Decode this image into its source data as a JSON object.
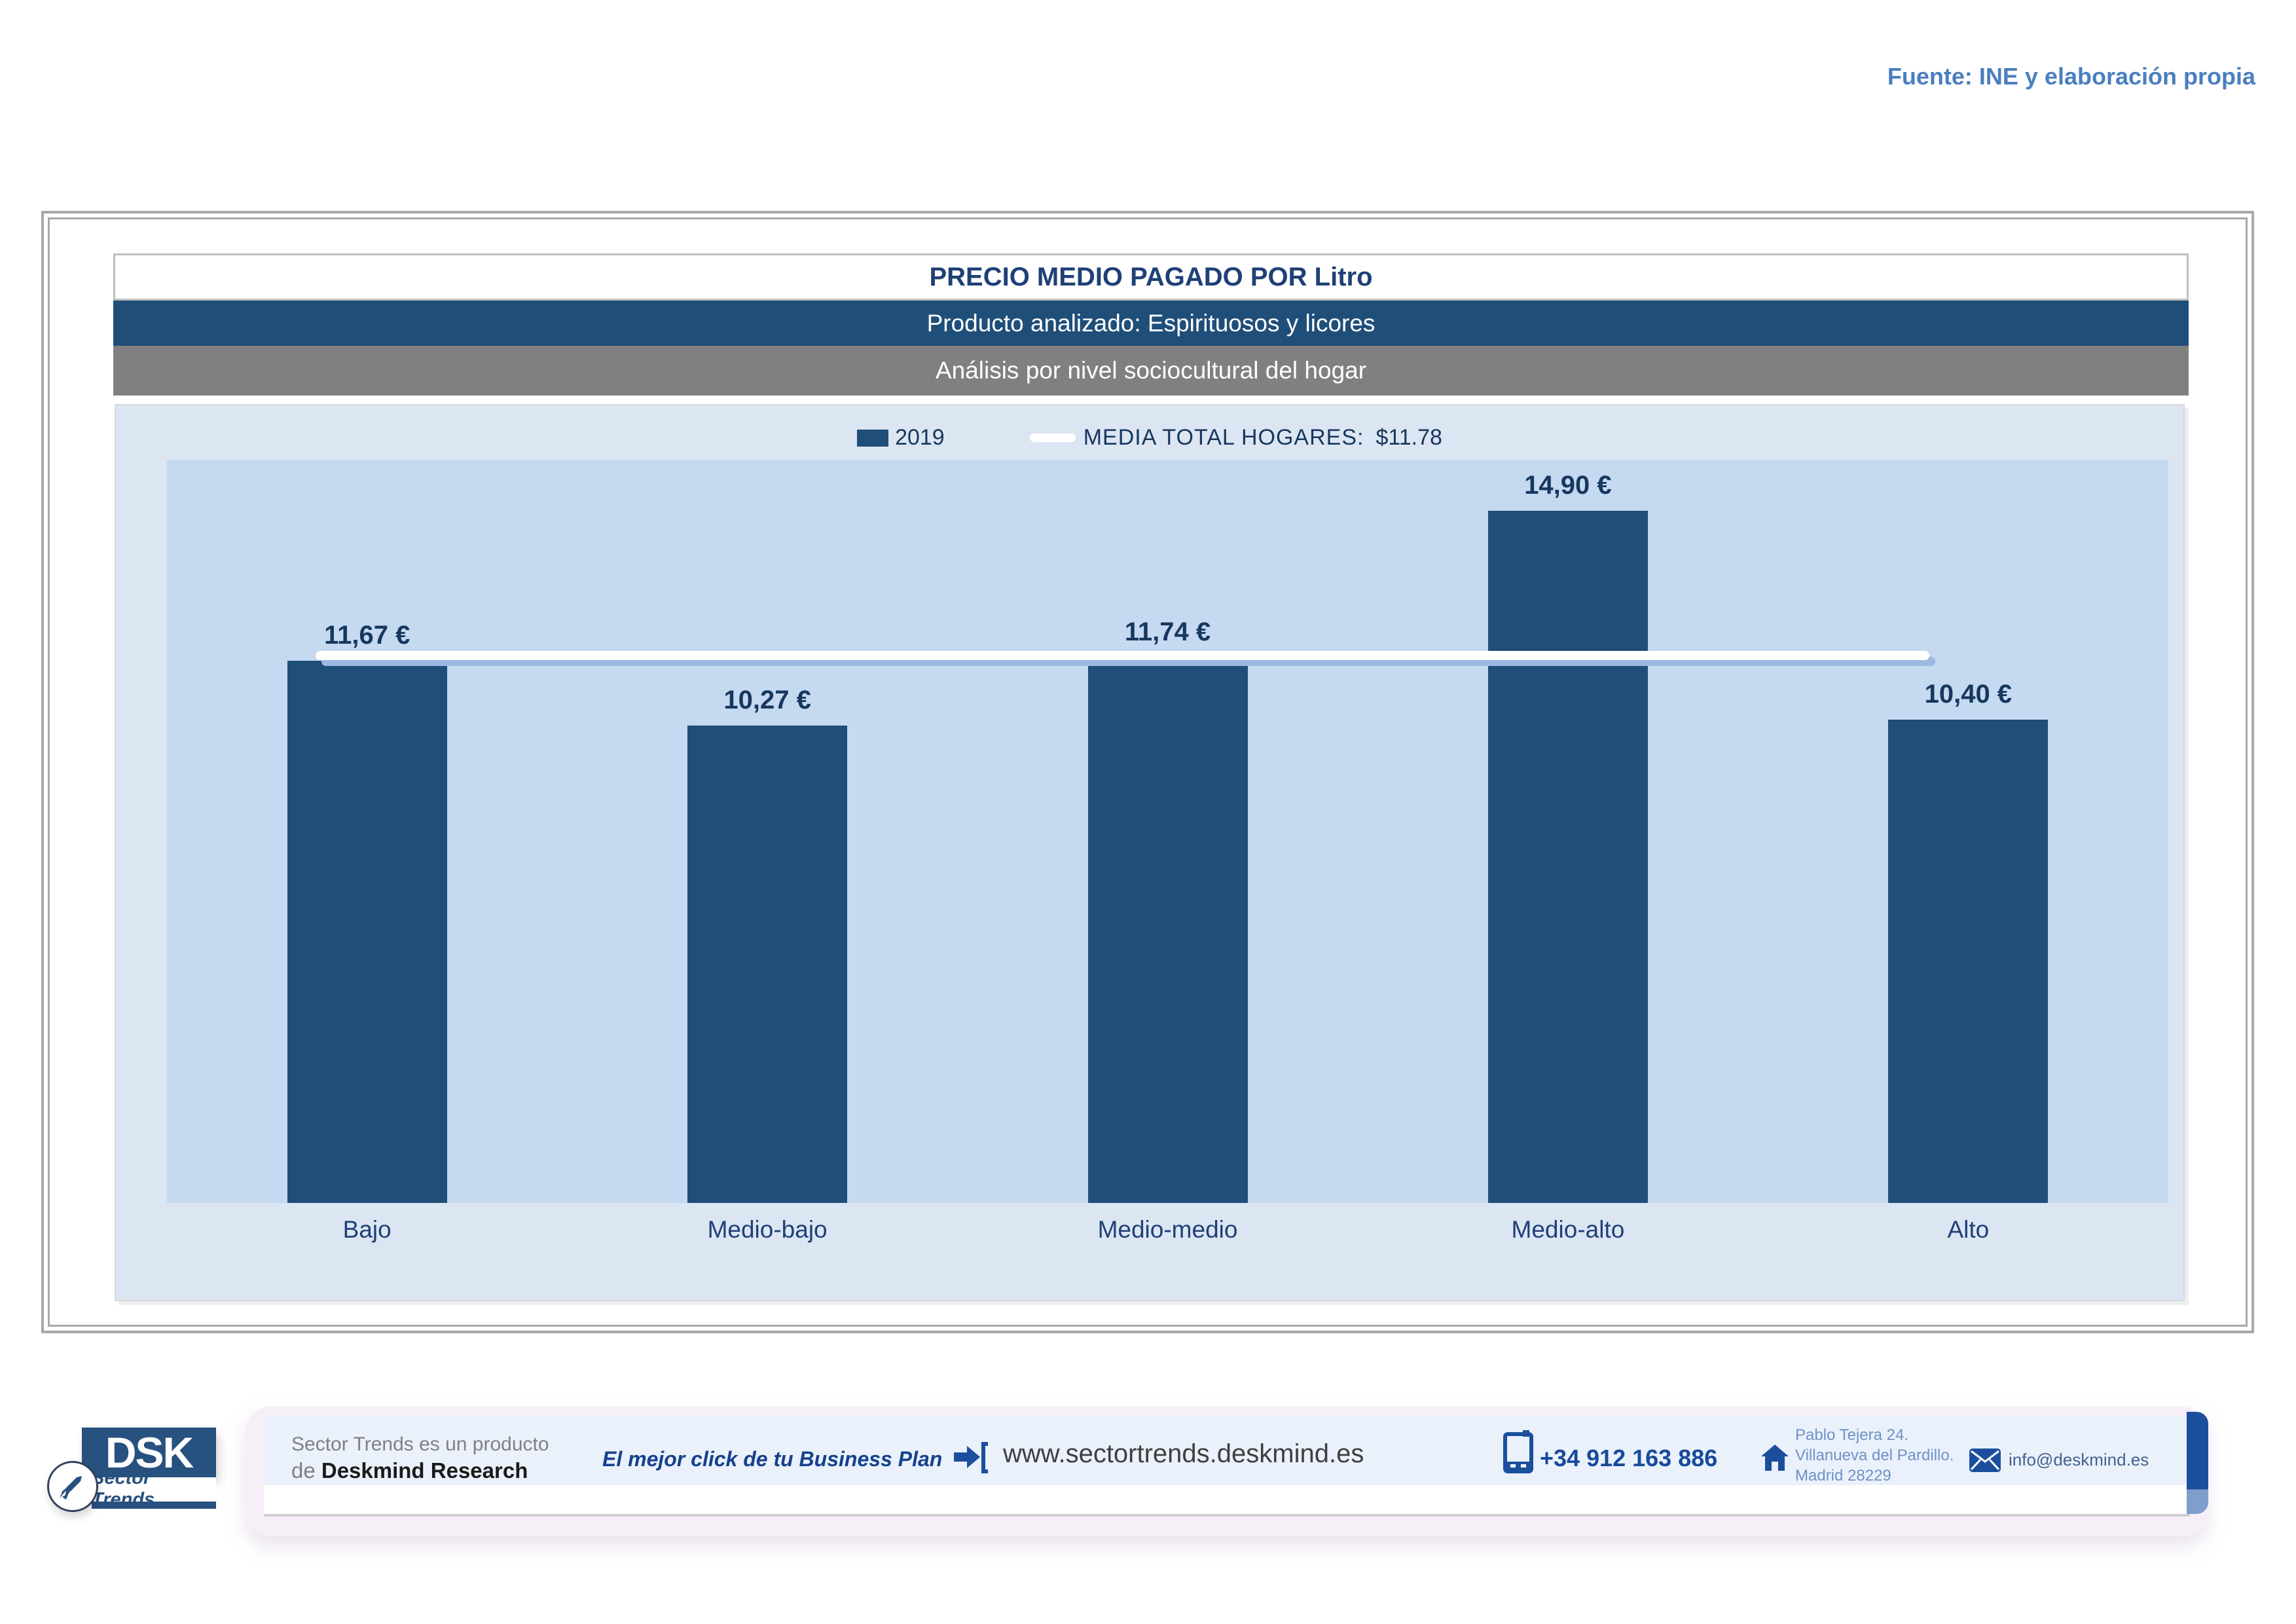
{
  "source_note": "Fuente: INE y elaboración propia",
  "header": {
    "title": "PRECIO MEDIO PAGADO POR Litro",
    "product_band": "Producto analizado: Espirituosos y licores",
    "analysis_band": "Análisis por nivel sociocultural del hogar"
  },
  "legend": {
    "series_label": "2019",
    "media_label": "MEDIA TOTAL  HOGARES:",
    "media_value": "$11.78"
  },
  "chart_data": {
    "type": "bar",
    "title": "PRECIO MEDIO PAGADO POR Litro",
    "subtitle": "Producto analizado: Espirituosos y licores — Análisis por nivel sociocultural del hogar",
    "categories": [
      "Bajo",
      "Medio-bajo",
      "Medio-medio",
      "Medio-alto",
      "Alto"
    ],
    "series": [
      {
        "name": "2019",
        "values": [
          11.67,
          10.27,
          11.74,
          14.9,
          10.4
        ]
      }
    ],
    "value_labels": [
      "11,67 €",
      "10,27 €",
      "11,74 €",
      "14,90 €",
      "10,40 €"
    ],
    "reference_line": {
      "name": "MEDIA TOTAL HOGARES",
      "value": 11.78,
      "display": "$11.78"
    },
    "ylim": [
      0,
      16
    ],
    "grid": false,
    "legend_position": "top",
    "bar_color": "#1F4E79",
    "plot_background": "#C5D9F1",
    "reference_line_color": "#FFFFFF"
  },
  "footer": {
    "logo": {
      "dsk": "DSK",
      "sector_trends": "Sector Trends"
    },
    "product_line1": "Sector Trends es un producto",
    "product_line2_prefix": "de ",
    "product_line2_bold": "Deskmind Research",
    "tagline": "El mejor click de tu Business Plan",
    "website": "www.sectortrends.deskmind.es",
    "phone": "+34 912 163 886",
    "address_line1": "Pablo Tejera 24.",
    "address_line2": "Villanueva del Pardillo.",
    "address_line3": "Madrid 28229",
    "email": "info@deskmind.es"
  },
  "colors": {
    "accent_navy": "#1F4E79",
    "band_gray": "#808080",
    "container_bg": "#DCE6F2",
    "plot_bg": "#C5D9F1",
    "source_note_blue": "#4A7EBF",
    "footer_blue": "#1B4F9E"
  }
}
